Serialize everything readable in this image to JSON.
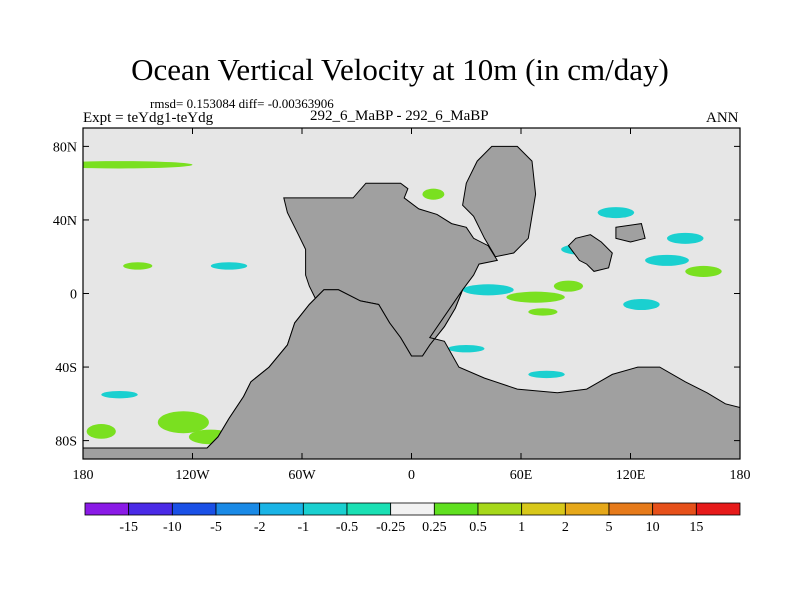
{
  "figure": {
    "title": "Ocean Vertical Velocity at 10m (in cm/day)",
    "stats_line": "rmsd= 0.153084 diff= -0.00363906",
    "expt_label": "Expt = teYdg1-teYdg",
    "subtitle": "292_6_MaBP - 292_6_MaBP",
    "season": "ANN"
  },
  "colors": {
    "land": "#a0a0a0",
    "ocean_neutral": "#e6e6e6",
    "green": "#7ae020",
    "cyan": "#1ad0d0",
    "sky": "#1aa6e6"
  },
  "chart_data": {
    "type": "heatmap",
    "title": "Ocean Vertical Velocity at 10m (in cm/day)",
    "xlim": [
      -180,
      180
    ],
    "ylim": [
      -90,
      90
    ],
    "x_ticks": [
      {
        "value": -180,
        "label": "180"
      },
      {
        "value": -120,
        "label": "120W"
      },
      {
        "value": -60,
        "label": "60W"
      },
      {
        "value": 0,
        "label": "0"
      },
      {
        "value": 60,
        "label": "60E"
      },
      {
        "value": 120,
        "label": "120E"
      },
      {
        "value": 180,
        "label": "180"
      }
    ],
    "y_ticks": [
      {
        "value": 80,
        "label": "80N"
      },
      {
        "value": 40,
        "label": "40N"
      },
      {
        "value": 0,
        "label": "0"
      },
      {
        "value": -40,
        "label": "40S"
      },
      {
        "value": -80,
        "label": "80S"
      }
    ],
    "colorbar": {
      "labels": [
        "-15",
        "-10",
        "-5",
        "-2",
        "-1",
        "-0.5",
        "-0.25",
        "0.25",
        "0.5",
        "1",
        "2",
        "5",
        "10",
        "15"
      ],
      "colors": [
        "#8a1ae6",
        "#4a2ae6",
        "#1a50e6",
        "#1a8ae6",
        "#1ab4e6",
        "#1ad0d0",
        "#1ae0b4",
        "#f2f2f2",
        "#60e020",
        "#a6d81a",
        "#d8c81a",
        "#e6a81a",
        "#e67a1a",
        "#e6501a",
        "#e61a1a"
      ]
    },
    "land_polygons": [
      {
        "name": "americas",
        "points": [
          [
            -70,
            52
          ],
          [
            -32,
            52
          ],
          [
            -25,
            60
          ],
          [
            -6,
            60
          ],
          [
            -2,
            57
          ],
          [
            -4,
            52
          ],
          [
            4,
            46
          ],
          [
            14,
            43
          ],
          [
            22,
            38
          ],
          [
            30,
            36
          ],
          [
            34,
            30
          ],
          [
            42,
            26
          ],
          [
            47,
            18
          ],
          [
            37,
            16
          ],
          [
            34,
            10
          ],
          [
            28,
            2
          ],
          [
            24,
            -8
          ],
          [
            18,
            -18
          ],
          [
            10,
            -28
          ],
          [
            6,
            -34
          ],
          [
            0,
            -34
          ],
          [
            -6,
            -24
          ],
          [
            -12,
            -16
          ],
          [
            -18,
            -6
          ],
          [
            -28,
            -4
          ],
          [
            -40,
            2
          ],
          [
            -48,
            2
          ],
          [
            -56,
            -6
          ],
          [
            -64,
            -16
          ],
          [
            -68,
            -28
          ],
          [
            -78,
            -40
          ],
          [
            -88,
            -48
          ],
          [
            -92,
            -56
          ],
          [
            -100,
            -68
          ],
          [
            -106,
            -78
          ],
          [
            -112,
            -84
          ],
          [
            -100,
            -84
          ],
          [
            -84,
            -82
          ],
          [
            -68,
            -72
          ],
          [
            -60,
            -60
          ],
          [
            -52,
            -50
          ],
          [
            -44,
            -36
          ],
          [
            -38,
            -28
          ],
          [
            -34,
            -26
          ],
          [
            -30,
            -18
          ],
          [
            -40,
            -14
          ],
          [
            -46,
            -10
          ],
          [
            -52,
            -4
          ],
          [
            -56,
            4
          ],
          [
            -58,
            10
          ],
          [
            -58,
            24
          ],
          [
            -62,
            32
          ],
          [
            -68,
            44
          ]
        ]
      },
      {
        "name": "south-america-2",
        "points": [
          [
            -34,
            -38
          ],
          [
            -20,
            -38
          ],
          [
            -10,
            -44
          ],
          [
            -4,
            -54
          ],
          [
            -6,
            -62
          ],
          [
            -16,
            -70
          ],
          [
            -24,
            -78
          ],
          [
            -30,
            -82
          ],
          [
            -40,
            -84
          ],
          [
            -56,
            -84
          ],
          [
            -52,
            -76
          ],
          [
            -44,
            -66
          ],
          [
            -40,
            -56
          ],
          [
            -36,
            -46
          ]
        ]
      },
      {
        "name": "greenland",
        "points": [
          [
            30,
            60
          ],
          [
            36,
            72
          ],
          [
            44,
            80
          ],
          [
            58,
            80
          ],
          [
            66,
            72
          ],
          [
            68,
            54
          ],
          [
            64,
            30
          ],
          [
            56,
            22
          ],
          [
            46,
            20
          ],
          [
            40,
            30
          ],
          [
            34,
            42
          ],
          [
            28,
            48
          ]
        ]
      },
      {
        "name": "africa-asia",
        "points": [
          [
            10,
            -24
          ],
          [
            18,
            -26
          ],
          [
            26,
            -40
          ],
          [
            40,
            -46
          ],
          [
            58,
            -52
          ],
          [
            80,
            -54
          ],
          [
            96,
            -52
          ],
          [
            110,
            -44
          ],
          [
            124,
            -40
          ],
          [
            136,
            -40
          ],
          [
            150,
            -48
          ],
          [
            162,
            -54
          ],
          [
            172,
            -60
          ],
          [
            180,
            -62
          ],
          [
            180,
            -90
          ],
          [
            -180,
            -90
          ],
          [
            -180,
            -84
          ],
          [
            -112,
            -84
          ],
          [
            -106,
            -78
          ],
          [
            -100,
            -68
          ],
          [
            -92,
            -56
          ],
          [
            -88,
            -48
          ],
          [
            -78,
            -40
          ],
          [
            -68,
            -28
          ],
          [
            -64,
            -16
          ],
          [
            -56,
            -6
          ],
          [
            -48,
            2
          ],
          [
            -40,
            2
          ],
          [
            -28,
            -4
          ],
          [
            -18,
            -6
          ],
          [
            -12,
            -16
          ],
          [
            -6,
            -24
          ],
          [
            0,
            -34
          ],
          [
            6,
            -34
          ],
          [
            10,
            -28
          ],
          [
            18,
            -18
          ],
          [
            24,
            -8
          ],
          [
            28,
            2
          ]
        ]
      },
      {
        "name": "indian-block",
        "points": [
          [
            86,
            26
          ],
          [
            90,
            30
          ],
          [
            98,
            32
          ],
          [
            104,
            28
          ],
          [
            110,
            22
          ],
          [
            108,
            14
          ],
          [
            100,
            12
          ],
          [
            96,
            16
          ],
          [
            92,
            18
          ]
        ]
      },
      {
        "name": "east-island",
        "points": [
          [
            112,
            36
          ],
          [
            126,
            38
          ],
          [
            128,
            30
          ],
          [
            120,
            28
          ],
          [
            112,
            30
          ]
        ]
      }
    ],
    "anomaly_patches": [
      {
        "lon": -160,
        "lat": 70,
        "rx": 40,
        "ry": 2,
        "level": "0.25-0.5"
      },
      {
        "lon": -125,
        "lat": -70,
        "rx": 14,
        "ry": 6,
        "level": "0.25-0.5"
      },
      {
        "lon": -110,
        "lat": -78,
        "rx": 12,
        "ry": 4,
        "level": "0.25-0.5"
      },
      {
        "lon": -170,
        "lat": -75,
        "rx": 8,
        "ry": 4,
        "level": "0.25-0.5"
      },
      {
        "lon": -150,
        "lat": 15,
        "rx": 8,
        "ry": 2,
        "level": "0.25-0.5"
      },
      {
        "lon": -100,
        "lat": 15,
        "rx": 10,
        "ry": 2,
        "level": "-0.5--0.25"
      },
      {
        "lon": -160,
        "lat": -55,
        "rx": 10,
        "ry": 2,
        "level": "-0.5--0.25"
      },
      {
        "lon": -60,
        "lat": -73,
        "rx": 5,
        "ry": 3,
        "level": "0.25-0.5"
      },
      {
        "lon": 12,
        "lat": 54,
        "rx": 6,
        "ry": 3,
        "level": "0.25-0.5"
      },
      {
        "lon": 42,
        "lat": 2,
        "rx": 14,
        "ry": 3,
        "level": "-0.5--0.25"
      },
      {
        "lon": 68,
        "lat": -2,
        "rx": 16,
        "ry": 3,
        "level": "0.25-0.5"
      },
      {
        "lon": 94,
        "lat": 24,
        "rx": 12,
        "ry": 3,
        "level": "-0.5--0.25"
      },
      {
        "lon": 112,
        "lat": 44,
        "rx": 10,
        "ry": 3,
        "level": "-0.5--0.25"
      },
      {
        "lon": 126,
        "lat": -6,
        "rx": 10,
        "ry": 3,
        "level": "-0.5--0.25"
      },
      {
        "lon": 140,
        "lat": 18,
        "rx": 12,
        "ry": 3,
        "level": "-0.5--0.25"
      },
      {
        "lon": 160,
        "lat": 12,
        "rx": 10,
        "ry": 3,
        "level": "0.25-0.5"
      },
      {
        "lon": 150,
        "lat": 30,
        "rx": 10,
        "ry": 3,
        "level": "-0.5--0.25"
      },
      {
        "lon": 86,
        "lat": 4,
        "rx": 8,
        "ry": 3,
        "level": "0.25-0.5"
      },
      {
        "lon": 72,
        "lat": -10,
        "rx": 8,
        "ry": 2,
        "level": "0.25-0.5"
      },
      {
        "lon": 74,
        "lat": -44,
        "rx": 10,
        "ry": 2,
        "level": "-0.5--0.25"
      },
      {
        "lon": 14,
        "lat": -48,
        "rx": 8,
        "ry": 2,
        "level": "0.25-0.5"
      },
      {
        "lon": 175,
        "lat": -72,
        "rx": 5,
        "ry": 4,
        "level": "-0.5--0.25"
      },
      {
        "lon": -5,
        "lat": 20,
        "rx": 6,
        "ry": 2,
        "level": "0.25-0.5"
      },
      {
        "lon": 30,
        "lat": -30,
        "rx": 10,
        "ry": 2,
        "level": "-0.5--0.25"
      }
    ]
  }
}
